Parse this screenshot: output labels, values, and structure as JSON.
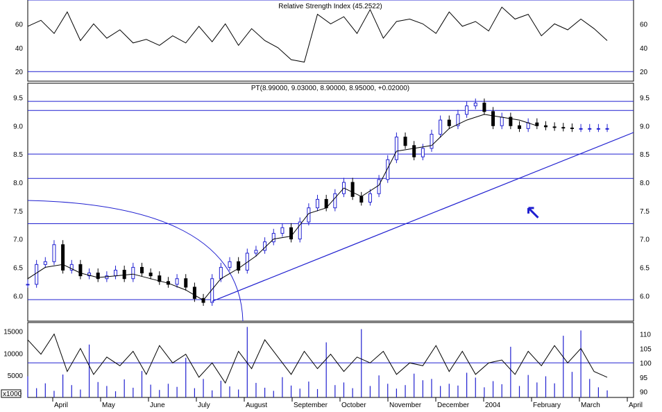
{
  "chart_data": [
    {
      "type": "line",
      "title": "Relative Strength Index (45.2522)",
      "ylim": [
        12,
        80
      ],
      "yticks": [
        20,
        40,
        60
      ],
      "hlines": [
        20,
        80
      ],
      "series": [
        {
          "x": [
            0,
            6,
            12,
            18,
            24,
            30,
            36,
            42,
            48,
            54,
            60,
            66,
            72,
            78,
            84,
            90,
            96,
            102,
            108,
            114,
            120,
            126,
            132,
            138,
            144,
            150,
            156,
            162,
            168,
            174,
            180,
            186,
            192,
            198,
            204,
            210,
            216,
            222,
            228,
            234,
            240,
            246,
            252,
            258,
            264
          ],
          "values": [
            58,
            63,
            52,
            70,
            46,
            60,
            48,
            55,
            44,
            47,
            42,
            50,
            44,
            58,
            45,
            60,
            42,
            56,
            46,
            40,
            30,
            28,
            68,
            60,
            66,
            52,
            72,
            48,
            62,
            64,
            60,
            52,
            70,
            58,
            62,
            54,
            74,
            64,
            68,
            50,
            60,
            55,
            64,
            56,
            46
          ]
        }
      ]
    },
    {
      "type": "line",
      "title": "PT(8.99000, 9.03000, 8.90000, 8.95000, +0.02000)",
      "ylim": [
        5.55,
        9.75
      ],
      "yticks": [
        "9.5",
        "9.0",
        "8.5",
        "8.0",
        "7.5",
        "7.0",
        "6.5",
        "6.0"
      ],
      "hlines": [
        9.43,
        9.27,
        8.5,
        8.07,
        7.27,
        5.93
      ],
      "x_labels": [
        "April",
        "May",
        "June",
        "July",
        "August",
        "September",
        "October",
        "November",
        "December",
        "2004",
        "February",
        "March",
        "April"
      ],
      "series": [
        {
          "name": "close",
          "x": [
            0,
            4,
            8,
            12,
            16,
            20,
            24,
            28,
            32,
            36,
            40,
            44,
            48,
            52,
            56,
            60,
            64,
            68,
            72,
            76,
            80,
            84,
            88,
            92,
            96,
            100,
            104,
            108,
            112,
            116,
            120,
            124,
            128,
            132,
            136,
            140,
            144,
            148,
            152,
            156,
            160,
            164,
            168,
            172,
            176,
            180,
            184,
            188,
            192,
            196,
            200,
            204,
            208,
            212,
            216,
            220,
            224,
            228,
            232,
            236,
            240,
            244,
            248,
            252,
            256,
            260,
            264
          ],
          "values": [
            6.2,
            6.55,
            6.6,
            6.9,
            6.45,
            6.55,
            6.35,
            6.4,
            6.3,
            6.35,
            6.45,
            6.3,
            6.5,
            6.4,
            6.35,
            6.25,
            6.2,
            6.3,
            6.15,
            5.95,
            5.88,
            6.3,
            6.5,
            6.6,
            6.45,
            6.75,
            6.8,
            6.95,
            7.1,
            7.2,
            7.0,
            7.3,
            7.55,
            7.7,
            7.55,
            7.8,
            8.0,
            7.75,
            7.65,
            7.8,
            8.05,
            8.4,
            8.8,
            8.65,
            8.45,
            8.6,
            8.85,
            9.1,
            9.0,
            9.2,
            9.35,
            9.4,
            9.25,
            9.0,
            9.15,
            9.0,
            8.95,
            9.05,
            9.0,
            8.98,
            8.97,
            8.96,
            8.95,
            8.95,
            8.95,
            8.95,
            8.95
          ]
        },
        {
          "name": "moving average",
          "x": [
            0,
            8,
            16,
            24,
            32,
            40,
            48,
            56,
            64,
            72,
            80,
            88,
            96,
            104,
            112,
            120,
            128,
            136,
            144,
            152,
            160,
            168,
            176,
            184,
            192,
            200,
            208,
            216,
            224,
            232
          ],
          "values": [
            6.3,
            6.5,
            6.55,
            6.4,
            6.32,
            6.35,
            6.38,
            6.3,
            6.22,
            6.1,
            5.92,
            6.3,
            6.48,
            6.7,
            7.0,
            7.05,
            7.45,
            7.55,
            7.9,
            7.75,
            7.95,
            8.55,
            8.6,
            8.65,
            8.95,
            9.1,
            9.2,
            9.15,
            9.1,
            9.0
          ]
        },
        {
          "name": "trendline",
          "x": [
            84,
            276
          ],
          "values": [
            5.9,
            8.88
          ]
        }
      ]
    },
    {
      "type": "bar",
      "title": "",
      "ylim": [
        0,
        17000
      ],
      "yticks": [
        "15000",
        "10000",
        "5000"
      ],
      "unit_label": "x1000",
      "right_ylim": [
        88,
        114
      ],
      "right_yticks": [
        "110",
        "105",
        "100",
        "95",
        "90"
      ],
      "values": [
        4800,
        2100,
        3200,
        1500,
        5200,
        2800,
        1800,
        12000,
        3500,
        2600,
        1400,
        4100,
        2200,
        6000,
        2900,
        1700,
        3100,
        2400,
        9000,
        2100,
        4200,
        1600,
        3800,
        2500,
        1800,
        16000,
        3300,
        2200,
        1500,
        4600,
        2700,
        2000,
        3600,
        1900,
        12500,
        2800,
        3400,
        2100,
        15500,
        2600,
        5000,
        3100,
        2000,
        2800,
        5400,
        3900,
        4200,
        2600,
        3100,
        2700,
        5600,
        4500,
        2300,
        3700,
        3000,
        11500,
        2600,
        5100,
        3400,
        4800,
        3200,
        14000,
        5800,
        15200,
        4200,
        2300,
        1600
      ],
      "series": [
        {
          "name": "oscillator",
          "x": [
            0,
            6,
            12,
            18,
            24,
            30,
            36,
            42,
            48,
            54,
            60,
            66,
            72,
            78,
            84,
            90,
            96,
            102,
            108,
            114,
            120,
            126,
            132,
            138,
            144,
            150,
            156,
            162,
            168,
            174,
            180,
            186,
            192,
            198,
            204,
            210,
            216,
            222,
            228,
            234,
            240,
            246,
            252,
            258,
            264
          ],
          "values": [
            108,
            103,
            110,
            97,
            105,
            96,
            102,
            99,
            104,
            96,
            106,
            100,
            103,
            95,
            100,
            93,
            104,
            98,
            108,
            102,
            96,
            104,
            98,
            103,
            97,
            102,
            100,
            104,
            96,
            100,
            99,
            106,
            97,
            104,
            96,
            100,
            101,
            96,
            104,
            99,
            106,
            100,
            105,
            97,
            95
          ]
        }
      ]
    }
  ]
}
